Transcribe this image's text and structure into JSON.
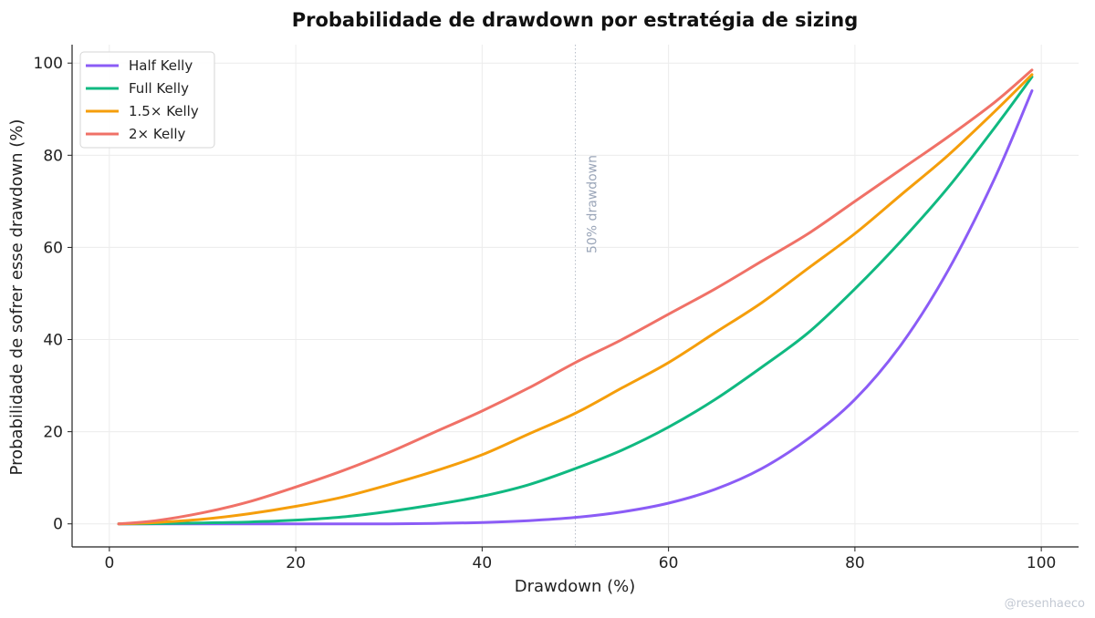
{
  "chart_data": {
    "type": "line",
    "title": "Probabilidade de drawdown por estratégia de sizing",
    "xlabel": "Drawdown (%)",
    "ylabel": "Probabilidade de sofrer esse drawdown (%)",
    "xlim": [
      -4,
      104
    ],
    "ylim": [
      -5,
      104
    ],
    "xticks": [
      0,
      20,
      40,
      60,
      80,
      100
    ],
    "yticks": [
      0,
      20,
      40,
      60,
      80,
      100
    ],
    "grid": true,
    "legend_position": "top-left",
    "x": [
      1,
      5,
      10,
      15,
      20,
      25,
      30,
      35,
      40,
      45,
      50,
      55,
      60,
      65,
      70,
      75,
      80,
      85,
      90,
      95,
      99
    ],
    "series": [
      {
        "name": "Half Kelly",
        "color": "#8b5cf6",
        "values": [
          0,
          0,
          0,
          0,
          0,
          0,
          0,
          0.1,
          0.3,
          0.7,
          1.4,
          2.6,
          4.5,
          7.5,
          12,
          18.5,
          27,
          39,
          55,
          75,
          94
        ]
      },
      {
        "name": "Full Kelly",
        "color": "#10b981",
        "values": [
          0,
          0.05,
          0.2,
          0.4,
          0.8,
          1.5,
          2.7,
          4.2,
          6,
          8.5,
          12,
          16,
          21,
          27,
          34,
          41.5,
          51,
          61.5,
          73,
          86,
          97
        ]
      },
      {
        "name": "1.5× Kelly",
        "color": "#f59e0b",
        "values": [
          0,
          0.3,
          1,
          2.2,
          3.8,
          5.8,
          8.5,
          11.5,
          15,
          19.5,
          24,
          29.5,
          35,
          41.5,
          48,
          55.5,
          63,
          71.5,
          80,
          89.5,
          97.5
        ]
      },
      {
        "name": "2× Kelly",
        "color": "#f07167",
        "values": [
          0,
          0.7,
          2.4,
          4.8,
          8,
          11.5,
          15.5,
          20,
          24.5,
          29.5,
          35,
          40,
          45.5,
          51,
          57,
          63,
          70,
          77,
          84,
          91.5,
          98.5
        ]
      }
    ],
    "annotations": [
      {
        "text": "50% drawdown",
        "x": 50,
        "style": "vertical dotted line"
      }
    ],
    "watermark": "@resenhaeco"
  }
}
